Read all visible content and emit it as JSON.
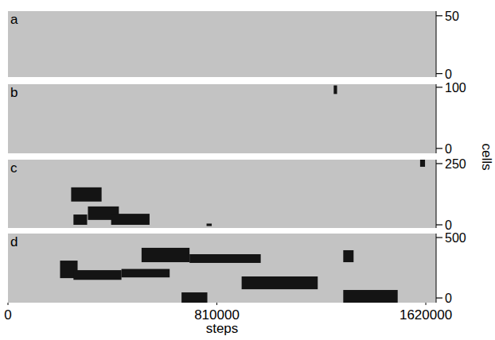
{
  "chart_data": [
    {
      "type": "raster",
      "label": "a",
      "ylabel": "cells",
      "color": "#141414",
      "xlim": [
        0,
        1660000
      ],
      "ylim": [
        -3,
        54
      ],
      "yticks": [
        0,
        50
      ],
      "blobs": []
    },
    {
      "type": "raster",
      "label": "b",
      "color": "#141414",
      "xlim": [
        0,
        1660000
      ],
      "ylim": [
        -8,
        105
      ],
      "yticks": [
        0,
        100
      ],
      "blobs": [
        {
          "x": [
            1263000,
            1276000
          ],
          "y": [
            89,
            103
          ]
        }
      ]
    },
    {
      "type": "raster",
      "label": "c",
      "color": "#141414",
      "xlim": [
        0,
        1660000
      ],
      "ylim": [
        -13,
        266
      ],
      "yticks": [
        0,
        250
      ],
      "blobs": [
        {
          "x": [
            245000,
            363000
          ],
          "y": [
            95,
            153
          ]
        },
        {
          "x": [
            254000,
            307000
          ],
          "y": [
            0,
            42
          ]
        },
        {
          "x": [
            310000,
            430000
          ],
          "y": [
            20,
            75
          ]
        },
        {
          "x": [
            400000,
            549000
          ],
          "y": [
            0,
            45
          ]
        },
        {
          "x": [
            770000,
            790000
          ],
          "y": [
            -5,
            5
          ]
        },
        {
          "x": [
            1598000,
            1617000
          ],
          "y": [
            237,
            266
          ]
        }
      ]
    },
    {
      "type": "raster",
      "label": "d",
      "color": "#141414",
      "xlabel": "steps",
      "xlim": [
        0,
        1660000
      ],
      "ylim": [
        -39,
        533
      ],
      "yticks": [
        0,
        500
      ],
      "xticks": [
        0,
        810000,
        1620000
      ],
      "blobs": [
        {
          "x": [
            202000,
            270000
          ],
          "y": [
            164,
            309
          ]
        },
        {
          "x": [
            254000,
            440000
          ],
          "y": [
            150,
            230
          ]
        },
        {
          "x": [
            440000,
            627000
          ],
          "y": [
            170,
            240
          ]
        },
        {
          "x": [
            518000,
            704000
          ],
          "y": [
            296,
            415
          ]
        },
        {
          "x": [
            704000,
            980000
          ],
          "y": [
            290,
            362
          ]
        },
        {
          "x": [
            673000,
            773000
          ],
          "y": [
            -39,
            46
          ]
        },
        {
          "x": [
            906000,
            1201000
          ],
          "y": [
            72,
            178
          ]
        },
        {
          "x": [
            1300000,
            1340000
          ],
          "y": [
            296,
            395
          ]
        },
        {
          "x": [
            1300000,
            1511000
          ],
          "y": [
            -39,
            66
          ]
        }
      ]
    }
  ]
}
